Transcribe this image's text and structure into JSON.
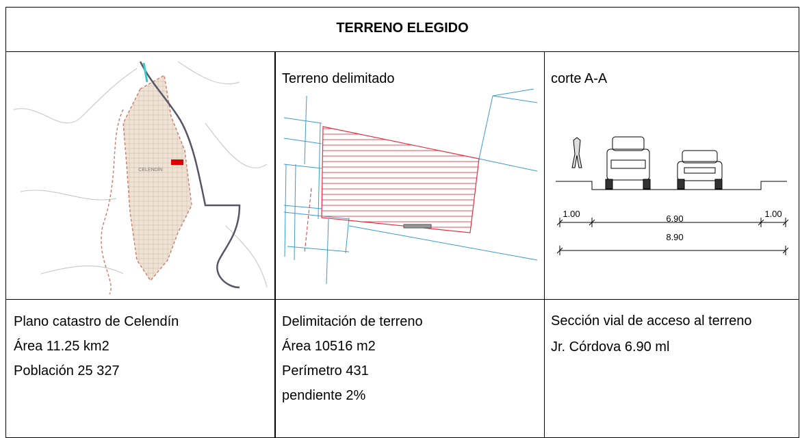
{
  "header": {
    "title": "TERRENO ELEGIDO"
  },
  "images": [
    {
      "map_label": "CELENDÍN"
    },
    {
      "caption": "Terreno delimitado"
    },
    {
      "caption": "corte A-A",
      "dimensions": [
        "1.00",
        "6.90",
        "1.00",
        "8.90"
      ]
    }
  ],
  "descriptions": [
    [
      "Plano catastro de Celendín",
      "Área 11.25 km2",
      "Población 25 327"
    ],
    [
      "Delimitación de terreno",
      "Área 10516 m2",
      "Perímetro 431",
      "pendiente 2%"
    ],
    [
      "Sección vial de acceso al terreno",
      "Jr. Córdova 6.90 ml"
    ]
  ]
}
